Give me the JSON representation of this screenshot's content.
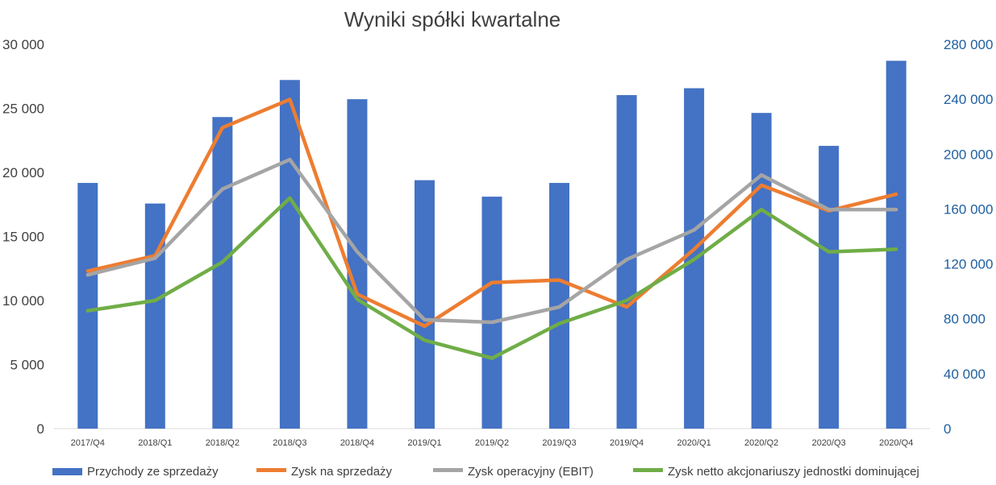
{
  "chart_data": {
    "type": "bar",
    "title": "Wyniki spółki kwartalne",
    "xlabel": "",
    "ylabel": "",
    "categories": [
      "2017/Q4",
      "2018/Q1",
      "2018/Q2",
      "2018/Q3",
      "2018/Q4",
      "2019/Q1",
      "2019/Q2",
      "2019/Q3",
      "2019/Q4",
      "2020/Q1",
      "2020/Q2",
      "2020/Q3",
      "2020/Q4"
    ],
    "y_left": {
      "lim": [
        0,
        30000
      ],
      "ticks": [
        "0",
        "5 000",
        "10 000",
        "15 000",
        "20 000",
        "25 000",
        "30 000"
      ],
      "tick_values": [
        0,
        5000,
        10000,
        15000,
        20000,
        25000,
        30000
      ]
    },
    "y_right": {
      "lim": [
        0,
        280000
      ],
      "ticks": [
        "0",
        "40 000",
        "80 000",
        "120 000",
        "160 000",
        "200 000",
        "240 000",
        "280 000"
      ],
      "tick_values": [
        0,
        40000,
        80000,
        120000,
        160000,
        200000,
        240000,
        280000
      ]
    },
    "grid": false,
    "legend_position": "bottom",
    "series": [
      {
        "name": "Przychody ze sprzedaży",
        "type": "bar",
        "axis": "right",
        "color": "#4472c4",
        "values": [
          179000,
          164000,
          227000,
          254000,
          240000,
          181000,
          169000,
          179000,
          243000,
          248000,
          230000,
          206000,
          268000
        ]
      },
      {
        "name": "Zysk na sprzedaży",
        "type": "line",
        "axis": "left",
        "color": "#ed7d31",
        "values": [
          12300,
          13500,
          23500,
          25700,
          10500,
          8000,
          11400,
          11600,
          9500,
          14000,
          19000,
          17000,
          18300
        ]
      },
      {
        "name": "Zysk operacyjny (EBIT)",
        "type": "line",
        "axis": "left",
        "color": "#a5a5a5",
        "values": [
          12000,
          13300,
          18700,
          21000,
          13800,
          8500,
          8300,
          9500,
          13200,
          15500,
          19800,
          17100,
          17100
        ]
      },
      {
        "name": "Zysk netto akcjonariuszy jednostki dominującej",
        "type": "line",
        "axis": "left",
        "color": "#70ad47",
        "values": [
          9200,
          10000,
          13000,
          18000,
          10100,
          6900,
          5500,
          8200,
          10000,
          13200,
          17100,
          13800,
          14000
        ]
      }
    ]
  }
}
